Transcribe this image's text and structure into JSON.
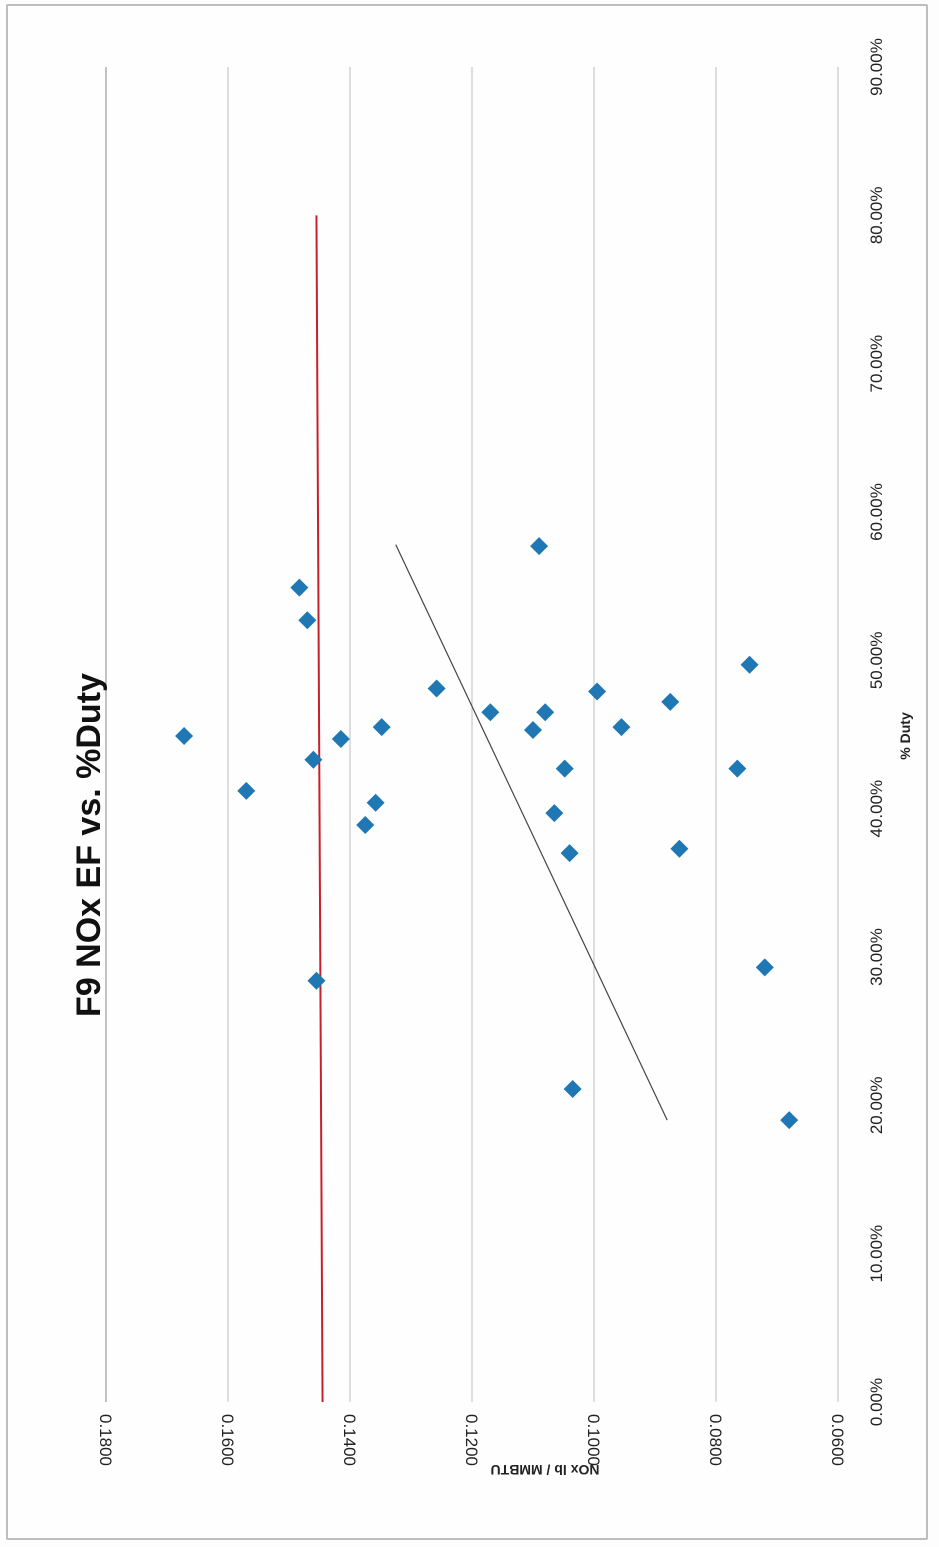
{
  "chart_data": {
    "type": "scatter",
    "title": "F9 NOx EF vs. %Duty",
    "xlabel": "% Duty",
    "ylabel": "NOx lb / MMBTU",
    "xlim": [
      0,
      0.9
    ],
    "ylim": [
      0.06,
      0.18
    ],
    "x_ticks": [
      "0.00%",
      "10.00%",
      "20.00%",
      "30.00%",
      "40.00%",
      "50.00%",
      "60.00%",
      "70.00%",
      "80.00%",
      "90.00%"
    ],
    "y_ticks": [
      "0.0600",
      "0.0800",
      "0.1000",
      "0.1200",
      "0.1400",
      "0.1600",
      "0.1800"
    ],
    "grid": "horizontal",
    "orientation": "rotated 90 degrees clockwise",
    "colors": {
      "points": "#1f77b4",
      "reference_line": "#c8202a",
      "trend_line": "#444444",
      "grid": "#bfbfbf"
    },
    "series": [
      {
        "marker": "diamond",
        "points": [
          {
            "x": 0.19,
            "y": 0.068
          },
          {
            "x": 0.211,
            "y": 0.1035
          },
          {
            "x": 0.284,
            "y": 0.1455
          },
          {
            "x": 0.293,
            "y": 0.072
          },
          {
            "x": 0.373,
            "y": 0.086
          },
          {
            "x": 0.37,
            "y": 0.104
          },
          {
            "x": 0.389,
            "y": 0.1375
          },
          {
            "x": 0.404,
            "y": 0.1358
          },
          {
            "x": 0.397,
            "y": 0.1065
          },
          {
            "x": 0.412,
            "y": 0.157
          },
          {
            "x": 0.427,
            "y": 0.1048
          },
          {
            "x": 0.427,
            "y": 0.0765
          },
          {
            "x": 0.433,
            "y": 0.146
          },
          {
            "x": 0.447,
            "y": 0.1415
          },
          {
            "x": 0.449,
            "y": 0.1672
          },
          {
            "x": 0.453,
            "y": 0.11
          },
          {
            "x": 0.455,
            "y": 0.1348
          },
          {
            "x": 0.455,
            "y": 0.0955
          },
          {
            "x": 0.465,
            "y": 0.117
          },
          {
            "x": 0.465,
            "y": 0.108
          },
          {
            "x": 0.472,
            "y": 0.0875
          },
          {
            "x": 0.479,
            "y": 0.0995
          },
          {
            "x": 0.481,
            "y": 0.1258
          },
          {
            "x": 0.497,
            "y": 0.0745
          },
          {
            "x": 0.527,
            "y": 0.147
          },
          {
            "x": 0.549,
            "y": 0.1483
          },
          {
            "x": 0.577,
            "y": 0.109
          }
        ]
      }
    ],
    "reference_line": {
      "x": [
        0.0,
        0.8
      ],
      "y": [
        0.1445,
        0.1455
      ]
    },
    "trend_line": {
      "x": [
        0.19,
        0.578
      ],
      "y": [
        0.088,
        0.1325
      ]
    }
  }
}
